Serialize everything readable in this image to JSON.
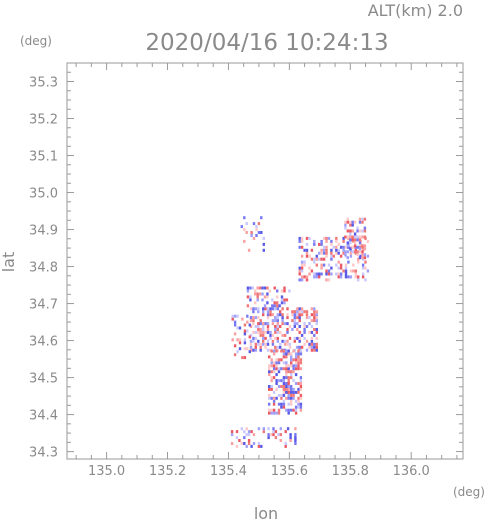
{
  "header": {
    "altitude_label": "ALT(km) 2.0",
    "timestamp": "2020/04/16 10:24:13"
  },
  "chart_data": {
    "type": "heatmap",
    "title": "2020/04/16 10:24:13",
    "subtitle": "ALT(km) 2.0",
    "xlabel": "lon",
    "ylabel": "lat",
    "xunit": "(deg)",
    "yunit": "(deg)",
    "xlim": [
      134.87,
      136.17
    ],
    "ylim": [
      34.28,
      35.35
    ],
    "x_ticks": [
      135.0,
      135.2,
      135.4,
      135.6,
      135.8,
      136.0
    ],
    "x_tick_labels": [
      "135.0",
      "135.2",
      "135.4",
      "135.6",
      "135.8",
      "136.0"
    ],
    "y_ticks": [
      34.3,
      34.4,
      34.5,
      34.6,
      34.7,
      34.8,
      34.9,
      35.0,
      35.1,
      35.2,
      35.3
    ],
    "y_tick_labels": [
      "34.3",
      "34.4",
      "34.5",
      "34.6",
      "34.7",
      "34.8",
      "34.9",
      "35.0",
      "35.1",
      "35.2",
      "35.3"
    ],
    "grid": false,
    "colors": {
      "positive": "#f07070",
      "negative": "#6e6ef0",
      "axis": "#9a9a9a"
    },
    "regions": [
      {
        "lon_min": 135.47,
        "lon_max": 135.69,
        "lat_min": 34.57,
        "lat_max": 34.69,
        "density": 0.55
      },
      {
        "lon_min": 135.53,
        "lon_max": 135.64,
        "lat_min": 34.4,
        "lat_max": 34.57,
        "density": 0.6
      },
      {
        "lon_min": 135.46,
        "lon_max": 135.6,
        "lat_min": 34.69,
        "lat_max": 34.74,
        "density": 0.35
      },
      {
        "lon_min": 135.63,
        "lon_max": 135.86,
        "lat_min": 34.76,
        "lat_max": 34.88,
        "density": 0.35
      },
      {
        "lon_min": 135.78,
        "lon_max": 135.85,
        "lat_min": 34.82,
        "lat_max": 34.93,
        "density": 0.45
      },
      {
        "lon_min": 135.44,
        "lon_max": 135.52,
        "lat_min": 34.84,
        "lat_max": 34.93,
        "density": 0.2
      },
      {
        "lon_min": 135.4,
        "lon_max": 135.62,
        "lat_min": 34.31,
        "lat_max": 34.36,
        "density": 0.25
      },
      {
        "lon_min": 135.41,
        "lon_max": 135.47,
        "lat_min": 34.55,
        "lat_max": 34.67,
        "density": 0.25
      }
    ]
  }
}
